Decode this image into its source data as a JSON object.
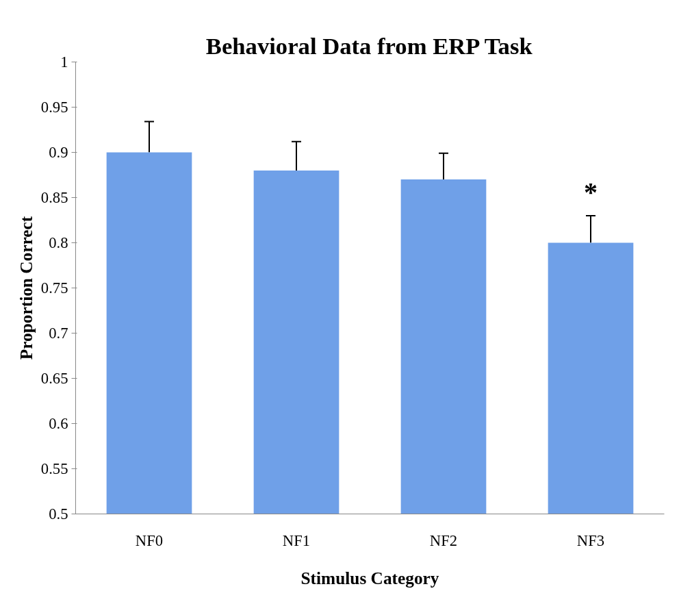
{
  "chart_data": {
    "type": "bar",
    "title": "Behavioral Data from ERP Task",
    "xlabel": "Stimulus Category",
    "ylabel": "Proportion Correct",
    "categories": [
      "NF0",
      "NF1",
      "NF2",
      "NF3"
    ],
    "values": [
      0.9,
      0.88,
      0.87,
      0.8
    ],
    "errors": [
      [
        0.9,
        0.934
      ],
      [
        0.88,
        0.912
      ],
      [
        0.87,
        0.899
      ],
      [
        0.8,
        0.83
      ]
    ],
    "color": "#6fa0e8",
    "ylim": [
      0.5,
      1
    ],
    "yticks": [
      0.5,
      0.55,
      0.6,
      0.65,
      0.7,
      0.75,
      0.8,
      0.85,
      0.9,
      0.95,
      1
    ],
    "annotations": [
      "*"
    ],
    "grid": false
  }
}
